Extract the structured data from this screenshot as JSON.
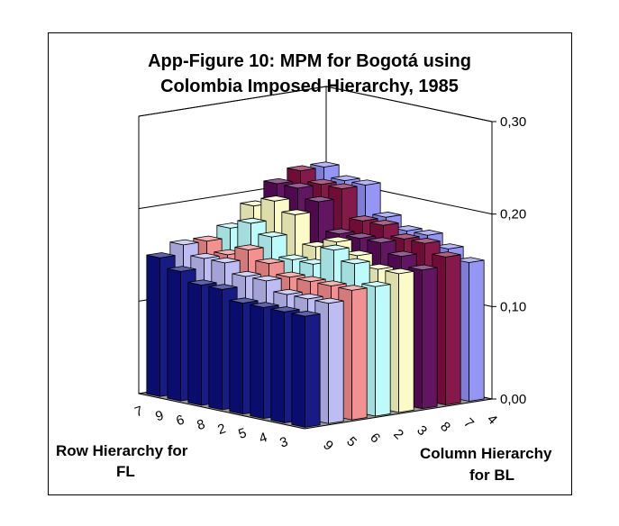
{
  "chart_data": {
    "type": "bar",
    "subtype": "3d-column",
    "title_line1": "App-Figure 10: MPM for Bogotá using",
    "title_line2": "Colombia Imposed Hierarchy, 1985",
    "row_axis_label": [
      "Row Hierarchy for",
      "FL"
    ],
    "column_axis_label": [
      "Column Hierarchy",
      "for BL"
    ],
    "row_categories": [
      "3",
      "4",
      "5",
      "2",
      "8",
      "6",
      "9",
      "7"
    ],
    "column_categories": [
      "9",
      "5",
      "6",
      "2",
      "3",
      "8",
      "7",
      "4"
    ],
    "z_ticks": [
      "0,00",
      "0,10",
      "0,20",
      "0,30"
    ],
    "zlim": [
      0,
      0.3
    ],
    "series_colors": [
      "#0b0f7c",
      "#b9b9f3",
      "#f18b8b",
      "#b9fbfb",
      "#fbfbc4",
      "#5a0a5a",
      "#7f0e40",
      "#8f8ff3"
    ],
    "values": [
      [
        0.12,
        0.13,
        0.14,
        0.14,
        0.15,
        0.15,
        0.16,
        0.15
      ],
      [
        0.12,
        0.13,
        0.14,
        0.16,
        0.15,
        0.16,
        0.17,
        0.16
      ],
      [
        0.12,
        0.13,
        0.14,
        0.17,
        0.16,
        0.17,
        0.17,
        0.17
      ],
      [
        0.12,
        0.14,
        0.14,
        0.15,
        0.17,
        0.17,
        0.18,
        0.17
      ],
      [
        0.13,
        0.14,
        0.15,
        0.15,
        0.16,
        0.17,
        0.18,
        0.18
      ],
      [
        0.13,
        0.15,
        0.16,
        0.17,
        0.19,
        0.2,
        0.21,
        0.21
      ],
      [
        0.14,
        0.15,
        0.15,
        0.18,
        0.2,
        0.21,
        0.21,
        0.21
      ],
      [
        0.15,
        0.16,
        0.16,
        0.17,
        0.19,
        0.21,
        0.22,
        0.22
      ]
    ]
  }
}
